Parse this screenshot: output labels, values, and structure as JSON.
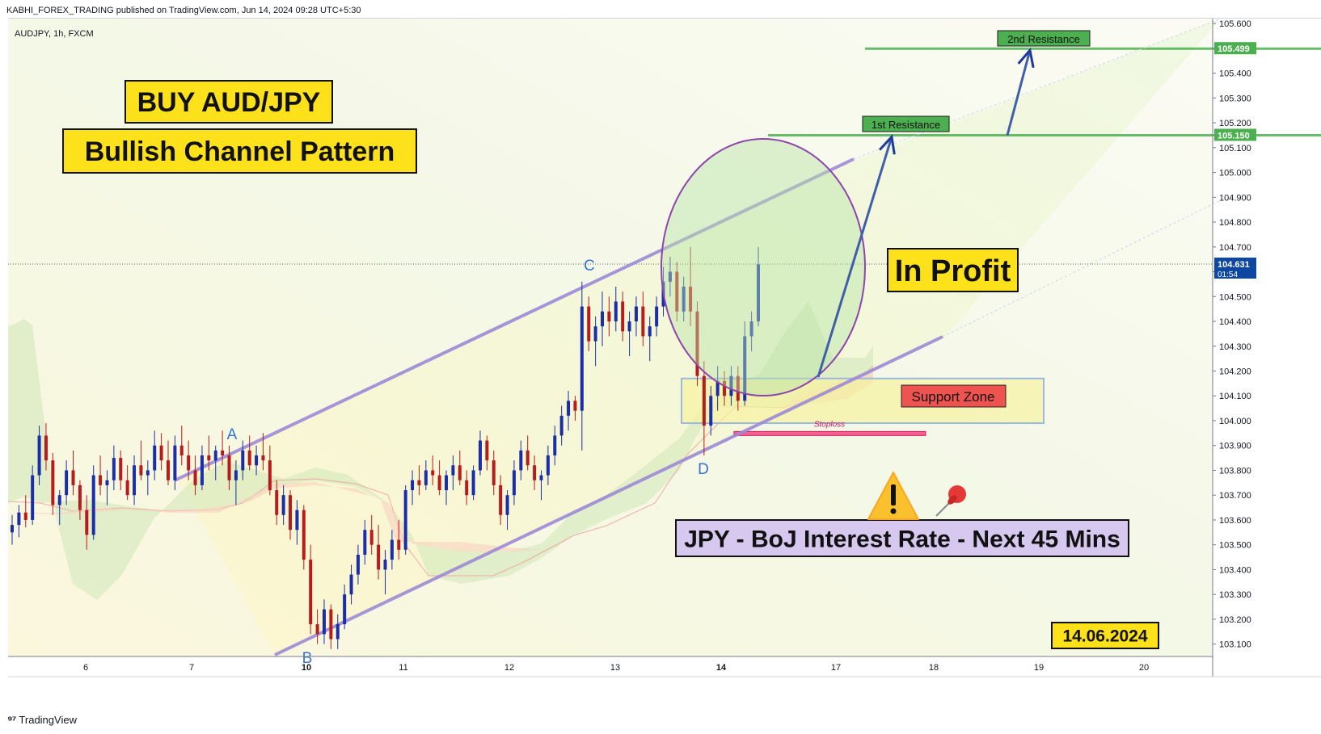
{
  "header": {
    "published": "KABHI_FOREX_TRADING published on TradingView.com, Jun 14, 2024 09:28 UTC+5:30"
  },
  "footer": {
    "brand": "TradingView"
  },
  "chart_data": {
    "type": "candlestick",
    "symbol": "AUDJPY, 1h, FXCM",
    "y_ticks": [
      "105.600",
      "105.500",
      "105.400",
      "105.300",
      "105.200",
      "105.100",
      "105.000",
      "104.900",
      "104.800",
      "104.700",
      "104.600",
      "104.500",
      "104.400",
      "104.300",
      "104.200",
      "104.100",
      "104.000",
      "103.900",
      "103.800",
      "103.700",
      "103.600",
      "103.500",
      "103.400",
      "103.300",
      "103.200",
      "103.100"
    ],
    "ylim": [
      103.05,
      105.62
    ],
    "x_ticks": [
      "6",
      "7",
      "10",
      "11",
      "12",
      "13",
      "14",
      "17",
      "18",
      "19",
      "20"
    ],
    "price_labels": [
      {
        "value": "105.499",
        "color": "#4caf50"
      },
      {
        "value": "105.150",
        "color": "#4caf50"
      },
      {
        "value": "104.631",
        "sub": "01:54",
        "color": "#0d47a1"
      }
    ],
    "last_price": 104.631,
    "resistance": [
      {
        "label": "2nd Resistance",
        "value": 105.499
      },
      {
        "label": "1st Resistance",
        "value": 105.15
      }
    ],
    "support_zone": {
      "label": "Support Zone",
      "from": 103.99,
      "to": 104.17
    },
    "stoploss": {
      "label": "Stoploss",
      "value": 103.95
    },
    "points": [
      {
        "label": "A",
        "price": 103.89
      },
      {
        "label": "B",
        "price": 103.09
      },
      {
        "label": "C",
        "price": 104.57
      },
      {
        "label": "D",
        "price": 103.87
      }
    ],
    "annotations": {
      "title": "BUY AUD/JPY",
      "subtitle": "Bullish Channel Pattern",
      "status": "In Profit",
      "event": "JPY - BoJ Interest Rate - Next 45 Mins",
      "date": "14.06.2024",
      "warning_icon": "warning-icon",
      "pin_icon": "pushpin-icon"
    },
    "ohlc": [
      [
        103.55,
        103.62,
        103.5,
        103.58
      ],
      [
        103.58,
        103.66,
        103.53,
        103.63
      ],
      [
        103.63,
        103.7,
        103.57,
        103.6
      ],
      [
        103.6,
        103.82,
        103.58,
        103.78
      ],
      [
        103.78,
        103.98,
        103.74,
        103.94
      ],
      [
        103.94,
        103.99,
        103.8,
        103.84
      ],
      [
        103.84,
        103.87,
        103.62,
        103.66
      ],
      [
        103.66,
        103.72,
        103.58,
        103.7
      ],
      [
        103.7,
        103.84,
        103.66,
        103.8
      ],
      [
        103.8,
        103.88,
        103.7,
        103.74
      ],
      [
        103.74,
        103.76,
        103.6,
        103.64
      ],
      [
        103.64,
        103.7,
        103.48,
        103.54
      ],
      [
        103.54,
        103.82,
        103.52,
        103.78
      ],
      [
        103.78,
        103.86,
        103.7,
        103.74
      ],
      [
        103.74,
        103.8,
        103.66,
        103.76
      ],
      [
        103.76,
        103.9,
        103.72,
        103.85
      ],
      [
        103.85,
        103.88,
        103.72,
        103.76
      ],
      [
        103.76,
        103.82,
        103.68,
        103.7
      ],
      [
        103.7,
        103.86,
        103.66,
        103.82
      ],
      [
        103.82,
        103.92,
        103.76,
        103.78
      ],
      [
        103.78,
        103.84,
        103.7,
        103.8
      ],
      [
        103.8,
        103.96,
        103.76,
        103.9
      ],
      [
        103.9,
        103.95,
        103.8,
        103.84
      ],
      [
        103.84,
        103.92,
        103.74,
        103.76
      ],
      [
        103.76,
        103.94,
        103.72,
        103.9
      ],
      [
        103.9,
        103.98,
        103.82,
        103.86
      ],
      [
        103.86,
        103.92,
        103.76,
        103.8
      ],
      [
        103.8,
        103.86,
        103.7,
        103.74
      ],
      [
        103.74,
        103.9,
        103.72,
        103.86
      ],
      [
        103.86,
        103.94,
        103.8,
        103.84
      ],
      [
        103.84,
        103.9,
        103.76,
        103.88
      ],
      [
        103.88,
        103.96,
        103.82,
        103.86
      ],
      [
        103.86,
        103.9,
        103.72,
        103.76
      ],
      [
        103.76,
        103.84,
        103.66,
        103.8
      ],
      [
        103.8,
        103.92,
        103.76,
        103.88
      ],
      [
        103.88,
        103.94,
        103.8,
        103.82
      ],
      [
        103.82,
        103.9,
        103.78,
        103.86
      ],
      [
        103.86,
        103.95,
        103.8,
        103.84
      ],
      [
        103.84,
        103.9,
        103.7,
        103.72
      ],
      [
        103.72,
        103.76,
        103.58,
        103.62
      ],
      [
        103.62,
        103.74,
        103.58,
        103.7
      ],
      [
        103.7,
        103.72,
        103.52,
        103.56
      ],
      [
        103.56,
        103.68,
        103.5,
        103.64
      ],
      [
        103.64,
        103.66,
        103.4,
        103.44
      ],
      [
        103.44,
        103.5,
        103.14,
        103.18
      ],
      [
        103.18,
        103.24,
        103.1,
        103.14
      ],
      [
        103.14,
        103.28,
        103.1,
        103.24
      ],
      [
        103.24,
        103.26,
        103.08,
        103.12
      ],
      [
        103.12,
        103.22,
        103.08,
        103.18
      ],
      [
        103.18,
        103.34,
        103.16,
        103.3
      ],
      [
        103.3,
        103.42,
        103.26,
        103.38
      ],
      [
        103.38,
        103.5,
        103.34,
        103.46
      ],
      [
        103.46,
        103.6,
        103.42,
        103.56
      ],
      [
        103.56,
        103.62,
        103.46,
        103.5
      ],
      [
        103.5,
        103.58,
        103.36,
        103.4
      ],
      [
        103.4,
        103.48,
        103.3,
        103.44
      ],
      [
        103.44,
        103.56,
        103.4,
        103.52
      ],
      [
        103.52,
        103.6,
        103.44,
        103.48
      ],
      [
        103.48,
        103.74,
        103.46,
        103.72
      ],
      [
        103.72,
        103.8,
        103.66,
        103.76
      ],
      [
        103.76,
        103.82,
        103.7,
        103.74
      ],
      [
        103.74,
        103.84,
        103.72,
        103.8
      ],
      [
        103.8,
        103.86,
        103.74,
        103.78
      ],
      [
        103.78,
        103.84,
        103.7,
        103.72
      ],
      [
        103.72,
        103.8,
        103.66,
        103.78
      ],
      [
        103.78,
        103.86,
        103.72,
        103.82
      ],
      [
        103.82,
        103.88,
        103.74,
        103.76
      ],
      [
        103.76,
        103.8,
        103.66,
        103.7
      ],
      [
        103.7,
        103.82,
        103.68,
        103.8
      ],
      [
        103.8,
        103.96,
        103.78,
        103.92
      ],
      [
        103.92,
        103.94,
        103.8,
        103.84
      ],
      [
        103.84,
        103.88,
        103.7,
        103.74
      ],
      [
        103.74,
        103.78,
        103.58,
        103.62
      ],
      [
        103.62,
        103.72,
        103.56,
        103.7
      ],
      [
        103.7,
        103.84,
        103.66,
        103.8
      ],
      [
        103.8,
        103.92,
        103.76,
        103.88
      ],
      [
        103.88,
        103.94,
        103.8,
        103.82
      ],
      [
        103.82,
        103.86,
        103.72,
        103.76
      ],
      [
        103.76,
        103.8,
        103.68,
        103.78
      ],
      [
        103.78,
        103.9,
        103.74,
        103.86
      ],
      [
        103.86,
        103.98,
        103.82,
        103.94
      ],
      [
        103.94,
        104.06,
        103.9,
        104.02
      ],
      [
        104.02,
        104.12,
        103.96,
        104.08
      ],
      [
        104.08,
        104.1,
        104.0,
        104.04
      ],
      [
        104.04,
        104.56,
        103.88,
        104.46
      ],
      [
        104.46,
        104.5,
        104.28,
        104.32
      ],
      [
        104.32,
        104.42,
        104.22,
        104.38
      ],
      [
        104.38,
        104.52,
        104.3,
        104.44
      ],
      [
        104.44,
        104.5,
        104.34,
        104.4
      ],
      [
        104.4,
        104.54,
        104.36,
        104.48
      ],
      [
        104.48,
        104.52,
        104.32,
        104.36
      ],
      [
        104.36,
        104.44,
        104.26,
        104.4
      ],
      [
        104.4,
        104.5,
        104.34,
        104.46
      ],
      [
        104.46,
        104.52,
        104.3,
        104.34
      ],
      [
        104.34,
        104.42,
        104.24,
        104.38
      ],
      [
        104.38,
        104.5,
        104.34,
        104.46
      ],
      [
        104.46,
        104.62,
        104.42,
        104.56
      ],
      [
        104.56,
        104.66,
        104.5,
        104.6
      ],
      [
        104.6,
        104.64,
        104.4,
        104.44
      ],
      [
        104.44,
        104.58,
        104.4,
        104.54
      ],
      [
        104.54,
        104.7,
        104.38,
        104.44
      ],
      [
        104.44,
        104.48,
        104.14,
        104.18
      ],
      [
        104.18,
        104.24,
        103.86,
        103.98
      ],
      [
        103.98,
        104.14,
        103.94,
        104.1
      ],
      [
        104.1,
        104.22,
        104.04,
        104.16
      ],
      [
        104.16,
        104.2,
        104.06,
        104.1
      ],
      [
        104.1,
        104.22,
        104.06,
        104.18
      ],
      [
        104.18,
        104.22,
        104.04,
        104.08
      ],
      [
        104.08,
        104.4,
        104.06,
        104.34
      ],
      [
        104.34,
        104.44,
        104.28,
        104.4
      ],
      [
        104.4,
        104.7,
        104.38,
        104.63
      ]
    ]
  }
}
